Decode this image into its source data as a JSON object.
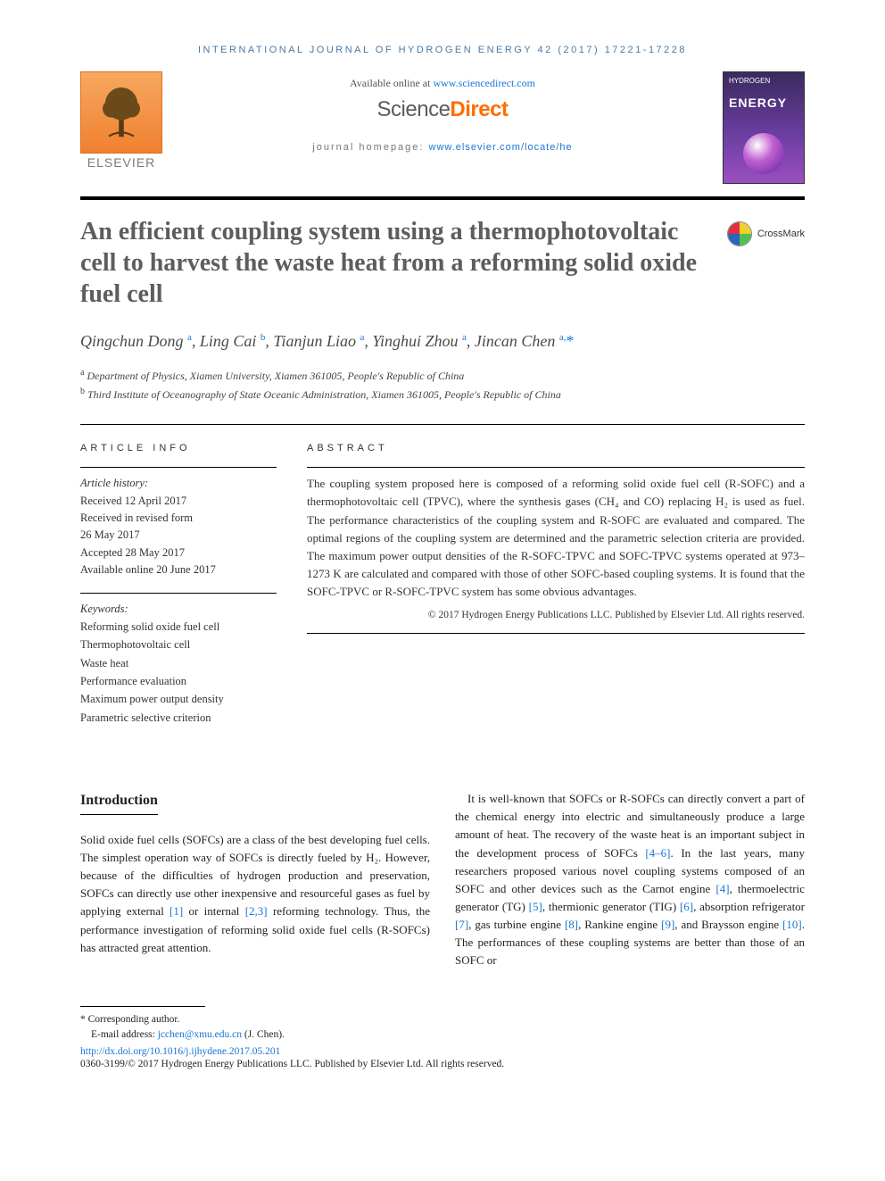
{
  "journal_header": "INTERNATIONAL JOURNAL OF HYDROGEN ENERGY 42 (2017) 17221-17228",
  "publisher_logo_text": "ELSEVIER",
  "available_prefix": "Available online at ",
  "available_link": "www.sciencedirect.com",
  "sd_logo": {
    "part1": "Science",
    "part2": "Direct"
  },
  "homepage_prefix": "journal homepage: ",
  "homepage_link": "www.elsevier.com/locate/he",
  "cover": {
    "line1": "HYDROGEN",
    "line2": "ENERGY"
  },
  "crossmark_label": "CrossMark",
  "title": "An efficient coupling system using a thermophotovoltaic cell to harvest the waste heat from a reforming solid oxide fuel cell",
  "authors_html": [
    {
      "name": "Qingchun Dong",
      "sup": "a"
    },
    {
      "name": "Ling Cai",
      "sup": "b"
    },
    {
      "name": "Tianjun Liao",
      "sup": "a"
    },
    {
      "name": "Yinghui Zhou",
      "sup": "a"
    },
    {
      "name": "Jincan Chen",
      "sup": "a,",
      "star": "*"
    }
  ],
  "affiliations": [
    {
      "sup": "a",
      "text": "Department of Physics, Xiamen University, Xiamen 361005, People's Republic of China"
    },
    {
      "sup": "b",
      "text": "Third Institute of Oceanography of State Oceanic Administration, Xiamen 361005, People's Republic of China"
    }
  ],
  "article_info_heading": "ARTICLE INFO",
  "abstract_heading": "ABSTRACT",
  "history_label": "Article history:",
  "history": [
    "Received 12 April 2017",
    "Received in revised form",
    "26 May 2017",
    "Accepted 28 May 2017",
    "Available online 20 June 2017"
  ],
  "keywords_label": "Keywords:",
  "keywords": [
    "Reforming solid oxide fuel cell",
    "Thermophotovoltaic cell",
    "Waste heat",
    "Performance evaluation",
    "Maximum power output density",
    "Parametric selective criterion"
  ],
  "abstract": "The coupling system proposed here is composed of a reforming solid oxide fuel cell (R-SOFC) and a thermophotovoltaic cell (TPVC), where the synthesis gases (CH₄ and CO) replacing H₂ is used as fuel. The performance characteristics of the coupling system and R-SOFC are evaluated and compared. The optimal regions of the coupling system are determined and the parametric selection criteria are provided. The maximum power output densities of the R-SOFC-TPVC and SOFC-TPVC systems operated at 973–1273 K are calculated and compared with those of other SOFC-based coupling systems. It is found that the SOFC-TPVC or R-SOFC-TPVC system has some obvious advantages.",
  "abs_copyright": "© 2017 Hydrogen Energy Publications LLC. Published by Elsevier Ltd. All rights reserved.",
  "intro_heading": "Introduction",
  "intro_p1_a": "Solid oxide fuel cells (SOFCs) are a class of the best developing fuel cells. The simplest operation way of SOFCs is directly fueled by H₂. However, because of the difficulties of hydrogen production and preservation, SOFCs can directly use other inexpensive and resourceful gases as fuel by applying external ",
  "intro_p1_b": " or internal ",
  "intro_p1_c": " reforming technology. Thus, the performance investigation of reforming solid oxide fuel cells (R-SOFCs) has attracted great attention.",
  "intro_p2_a": "It is well-known that SOFCs or R-SOFCs can directly convert a part of the chemical energy into electric and simultaneously produce a large amount of heat. The recovery of the waste heat is an important subject in the development process of SOFCs ",
  "intro_p2_b": ". In the last years, many researchers proposed various novel coupling systems composed of an SOFC and other devices such as the Carnot engine ",
  "intro_p2_c": ", thermoelectric generator (TG) ",
  "intro_p2_d": ", thermionic generator (TIG) ",
  "intro_p2_e": ", absorption refrigerator ",
  "intro_p2_f": ", gas turbine engine ",
  "intro_p2_g": ", Rankine engine ",
  "intro_p2_h": ", and Braysson engine ",
  "intro_p2_i": ". The performances of these coupling systems are better than those of an SOFC or",
  "refs": {
    "r1": "[1]",
    "r23": "[2,3]",
    "r46": "[4–6]",
    "r4": "[4]",
    "r5": "[5]",
    "r6": "[6]",
    "r7": "[7]",
    "r8": "[8]",
    "r9": "[9]",
    "r10": "[10]"
  },
  "corr_label": "* Corresponding author.",
  "email_label": "E-mail address: ",
  "email": "jcchen@xmu.edu.cn",
  "email_suffix": " (J. Chen).",
  "doi": "http://dx.doi.org/10.1016/j.ijhydene.2017.05.201",
  "issn_line": "0360-3199/© 2017 Hydrogen Energy Publications LLC. Published by Elsevier Ltd. All rights reserved.",
  "colors": {
    "link": "#1976d2",
    "accent": "#ff6c00",
    "title_grey": "#5d5d5d"
  }
}
